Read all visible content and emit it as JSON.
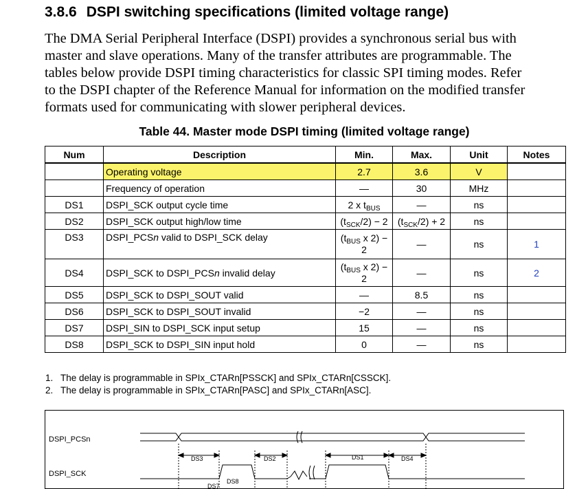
{
  "section": {
    "number": "3.8.6",
    "title": "DSPI switching specifications (limited voltage range)"
  },
  "intro_lines": [
    "The DMA Serial Peripheral Interface (DSPI) provides a synchronous serial bus with",
    "master and slave operations. Many of the transfer attributes are programmable. The",
    "tables below provide DSPI timing characteristics for classic SPI timing modes. Refer",
    "to the DSPI chapter of the Reference Manual for information on the modified transfer",
    "formats used for communicating with slower peripheral devices."
  ],
  "table": {
    "caption": "Table 44.   Master mode DSPI timing (limited voltage range)",
    "headers": [
      "Num",
      "Description",
      "Min.",
      "Max.",
      "Unit",
      "Notes"
    ],
    "rows": [
      {
        "num": "",
        "desc": "Operating voltage",
        "min": "2.7",
        "max": "3.6",
        "unit": "V",
        "notes": ""
      },
      {
        "num": "",
        "desc": "Frequency of operation",
        "min": "—",
        "max": "30",
        "unit": "MHz",
        "notes": ""
      },
      {
        "num": "DS1",
        "desc": "DSPI_SCK output cycle time",
        "min_pre": "2 x t",
        "min_sub": "BUS",
        "max": "—",
        "unit": "ns",
        "notes": ""
      },
      {
        "num": "DS2",
        "desc": "DSPI_SCK output high/low time",
        "min_pre": "(t",
        "min_sub": "SCK",
        "min_post": "/2) − 2",
        "max_pre": "(t",
        "max_sub": "SCK",
        "max_post": "/2) + 2",
        "unit": "ns",
        "notes": ""
      },
      {
        "num": "DS3",
        "desc_pre": "DSPI_PCS",
        "desc_ital": "n",
        "desc_post": " valid to DSPI_SCK delay",
        "min_pre": "(t",
        "min_sub": "BUS",
        "min_post": " x 2) −",
        "min_line2": "2",
        "max": "—",
        "unit": "ns",
        "notes": "1"
      },
      {
        "num": "DS4",
        "desc_pre": "DSPI_SCK to DSPI_PCS",
        "desc_ital": "n",
        "desc_post": " invalid delay",
        "min_pre": "(t",
        "min_sub": "BUS",
        "min_post": " x 2) −",
        "min_line2": "2",
        "max": "—",
        "unit": "ns",
        "notes": "2"
      },
      {
        "num": "DS5",
        "desc": "DSPI_SCK to DSPI_SOUT valid",
        "min": "—",
        "max": "8.5",
        "unit": "ns",
        "notes": ""
      },
      {
        "num": "DS6",
        "desc": "DSPI_SCK to DSPI_SOUT invalid",
        "min": "−2",
        "max": "—",
        "unit": "ns",
        "notes": ""
      },
      {
        "num": "DS7",
        "desc": "DSPI_SIN to DSPI_SCK input setup",
        "min": "15",
        "max": "—",
        "unit": "ns",
        "notes": ""
      },
      {
        "num": "DS8",
        "desc": "DSPI_SCK to DSPI_SIN input hold",
        "min": "0",
        "max": "—",
        "unit": "ns",
        "notes": ""
      }
    ]
  },
  "footnotes": [
    {
      "num": "1.",
      "text": "The delay is programmable in SPIx_CTARn[PSSCK] and SPIx_CTARn[CSSCK]."
    },
    {
      "num": "2.",
      "text": "The delay is programmable in SPIx_CTARn[PASC] and SPIx_CTARn[ASC]."
    }
  ],
  "diagram": {
    "signals": [
      "DSPI_PCSn",
      "DSPI_SCK"
    ],
    "timing_tags": [
      "DS3",
      "DS2",
      "DS1",
      "DS4",
      "DS7",
      "DS8"
    ]
  },
  "colors": {
    "highlight": "#fbf36b",
    "note_link": "#1f3fbf"
  }
}
